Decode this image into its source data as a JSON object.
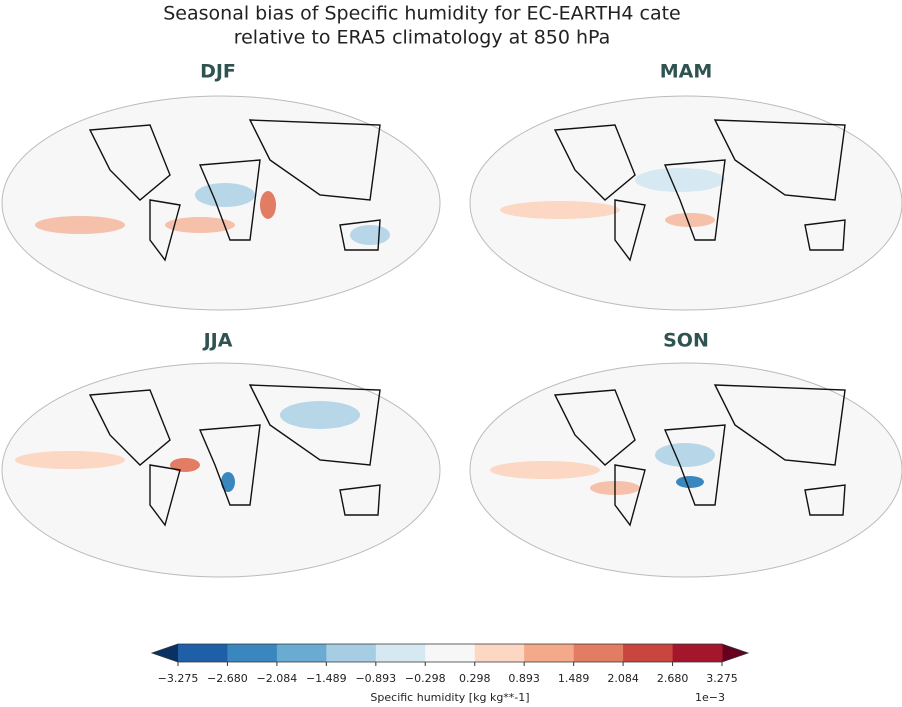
{
  "title_lines": [
    "Seasonal bias of Specific humidity for EC-EARTH4 cate",
    "relative to ERA5 climatology at 850 hPa"
  ],
  "panels": [
    {
      "title": "DJF"
    },
    {
      "title": "MAM"
    },
    {
      "title": "JJA"
    },
    {
      "title": "SON"
    }
  ],
  "colorbar": {
    "lim": [
      -3.275,
      3.275
    ],
    "ticks": [
      {
        "value": -3.275,
        "label": "−3.275"
      },
      {
        "value": -2.68,
        "label": "−2.680"
      },
      {
        "value": -2.084,
        "label": "−2.084"
      },
      {
        "value": -1.489,
        "label": "−1.489"
      },
      {
        "value": -0.893,
        "label": "−0.893"
      },
      {
        "value": -0.298,
        "label": "−0.298"
      },
      0.298,
      0.893,
      1.489,
      2.084,
      {
        "value": 2.68,
        "label": "2.680"
      },
      3.275
    ],
    "colors": [
      "#1f5fa8",
      "#3a87c0",
      "#6aabd2",
      "#a6cde3",
      "#d6e8f2",
      "#f7f7f7",
      "#fbd7c4",
      "#f4a98a",
      "#e27c63",
      "#c9463f",
      "#a3162c"
    ],
    "under_color": "#0a3163",
    "over_color": "#67001f",
    "label": "Specific humidity [kg kg**-1]",
    "exponent_label": "1e−3"
  }
}
